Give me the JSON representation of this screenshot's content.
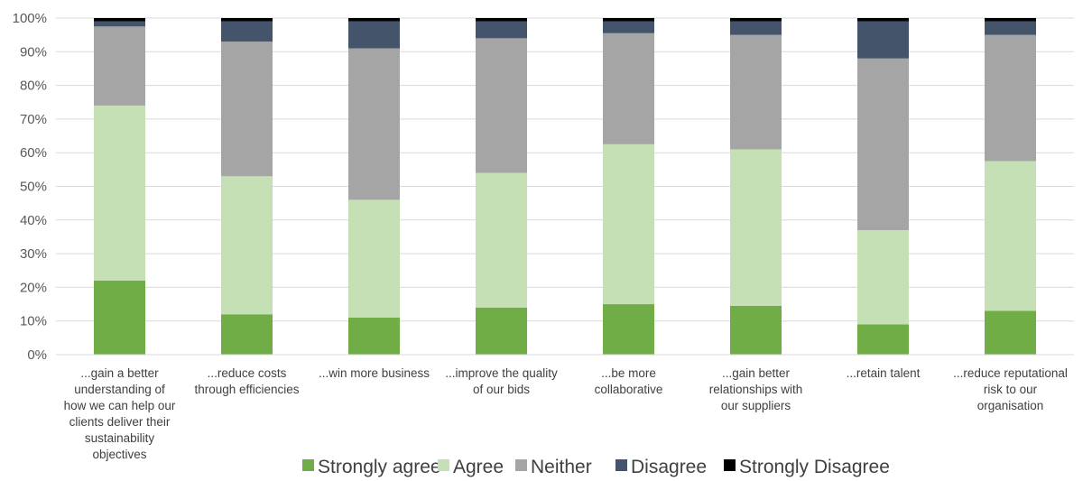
{
  "chart_data": {
    "type": "bar",
    "stacked": true,
    "percent": true,
    "categories": [
      "...gain a better understanding of how we can help our clients deliver their sustainability objectives",
      "...reduce costs through efficiencies",
      "...win more business",
      "...improve the quality of our bids",
      "...be more collaborative",
      "...gain better relationships with our suppliers",
      "...retain talent",
      "...reduce reputational risk to our organisation"
    ],
    "category_lines": [
      [
        "...gain a better",
        "understanding of",
        "how we can help our",
        "clients deliver their",
        "sustainability",
        "objectives"
      ],
      [
        "...reduce costs",
        "through efficiencies"
      ],
      [
        "...win more business"
      ],
      [
        "...improve the quality",
        "of our bids"
      ],
      [
        "...be more",
        "collaborative"
      ],
      [
        "...gain better",
        "relationships with",
        "our suppliers"
      ],
      [
        "...retain talent"
      ],
      [
        "...reduce reputational",
        "risk to our",
        "organisation"
      ]
    ],
    "series": [
      {
        "name": "Strongly agree",
        "color": "#70ad47",
        "values": [
          22,
          12,
          11,
          14,
          15,
          14.5,
          9,
          13
        ]
      },
      {
        "name": "Agree",
        "color": "#c5e0b4",
        "values": [
          52,
          41,
          35,
          40,
          47.5,
          46.5,
          28,
          44.5
        ]
      },
      {
        "name": "Neither",
        "color": "#a5a5a5",
        "values": [
          23.5,
          40,
          45,
          40,
          33,
          34,
          51,
          37.5
        ]
      },
      {
        "name": "Disagree",
        "color": "#44546a",
        "values": [
          1.5,
          6,
          8,
          5,
          3.5,
          4,
          11,
          4
        ]
      },
      {
        "name": "Strongly Disagree",
        "color": "#000000",
        "values": [
          1,
          1,
          1,
          1,
          1,
          1,
          1,
          1
        ]
      }
    ],
    "y_ticks": [
      "0%",
      "10%",
      "20%",
      "30%",
      "40%",
      "50%",
      "60%",
      "70%",
      "80%",
      "90%",
      "100%"
    ],
    "ylim": [
      0,
      100
    ],
    "grid": true,
    "legend_position": "bottom"
  }
}
